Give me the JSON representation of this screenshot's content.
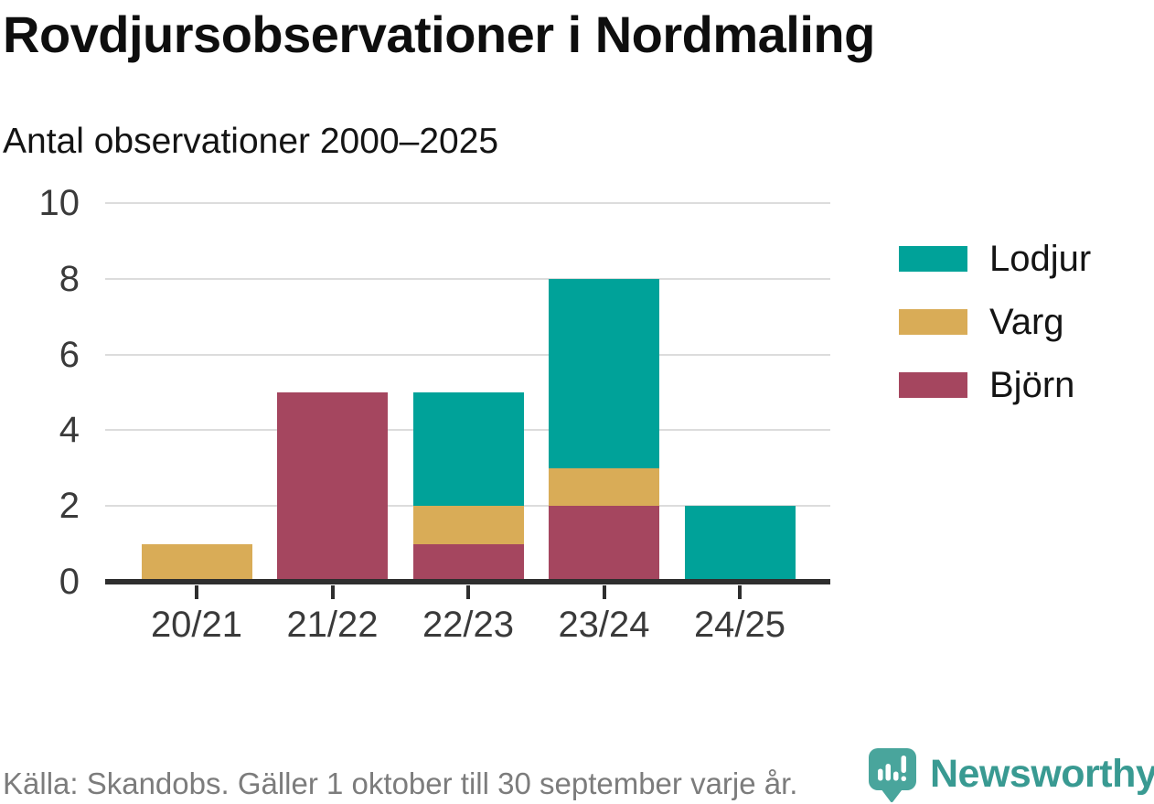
{
  "title": "Rovdjursobservationer i Nordmaling",
  "subtitle": "Antal observationer 2000–2025",
  "chart_data": {
    "type": "bar",
    "stacked": true,
    "title": "Rovdjursobservationer i Nordmaling",
    "subtitle": "Antal observationer 2000–2025",
    "categories": [
      "20/21",
      "21/22",
      "22/23",
      "23/24",
      "24/25"
    ],
    "series": [
      {
        "name": "Lodjur",
        "color": "#00a299",
        "values": [
          0,
          0,
          3,
          5,
          2
        ]
      },
      {
        "name": "Varg",
        "color": "#d9ac57",
        "values": [
          1,
          0,
          1,
          1,
          0
        ]
      },
      {
        "name": "Björn",
        "color": "#a5465f",
        "values": [
          0,
          5,
          1,
          2,
          0
        ]
      }
    ],
    "stack_order_bottom_to_top": [
      "Björn",
      "Varg",
      "Lodjur"
    ],
    "stacked_totals": [
      1,
      5,
      5,
      8,
      2
    ],
    "xlabel": "",
    "ylabel": "",
    "ylim": [
      0,
      10
    ],
    "ytick_step": 2,
    "yticks": [
      0,
      2,
      4,
      6,
      8,
      10
    ],
    "grid": "horizontal",
    "legend_position": "right"
  },
  "footer": {
    "source": "Källa: Skandobs. Gäller 1 oktober till 30 september varje år.",
    "brand": "Newsworthy"
  },
  "colors": {
    "lodjur": "#00a299",
    "varg": "#d9ac57",
    "bjorn": "#a5465f",
    "grid": "#dcdcdc",
    "axis": "#2e2e2e",
    "tick_text": "#3a3a3a",
    "title_text": "#0e0e0e",
    "muted_text": "#7c7c7c",
    "brand_bubble": "#49a59c",
    "brand_text": "#399a92"
  }
}
